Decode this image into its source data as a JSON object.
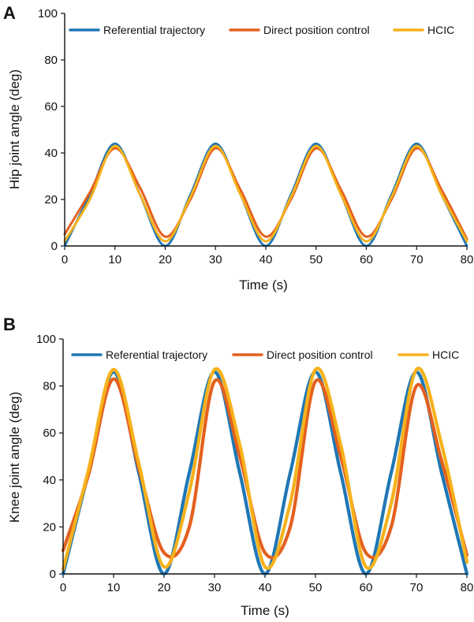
{
  "chart_data": [
    {
      "panel": "A",
      "type": "line",
      "xlabel": "Time (s)",
      "ylabel": "Hip joint angle (deg)",
      "xlim": [
        0,
        80
      ],
      "ylim": [
        0,
        100
      ],
      "xticks": [
        0,
        10,
        20,
        30,
        40,
        50,
        60,
        70,
        80
      ],
      "yticks": [
        0,
        20,
        40,
        60,
        80,
        100
      ],
      "legend_position": "top",
      "series": [
        {
          "name": "Referential trajectory",
          "color": "#1f77b4",
          "x": [
            0,
            5,
            10,
            15,
            20,
            25,
            30,
            35,
            40,
            45,
            50,
            55,
            60,
            65,
            70,
            75,
            80
          ],
          "y": [
            0,
            22,
            44,
            22,
            0,
            22,
            44,
            22,
            0,
            22,
            44,
            22,
            0,
            22,
            44,
            22,
            0
          ]
        },
        {
          "name": "Direct position control",
          "color": "#e4601e",
          "x": [
            0,
            5,
            10,
            15,
            20,
            25,
            30,
            35,
            40,
            45,
            50,
            55,
            60,
            65,
            70,
            75,
            80
          ],
          "y": [
            5,
            23,
            42,
            25,
            4,
            20,
            42,
            24,
            4,
            20,
            42,
            24,
            4,
            20,
            42,
            24,
            3
          ]
        },
        {
          "name": "HCIC",
          "color": "#f6b21b",
          "x": [
            0,
            5,
            10,
            15,
            20,
            25,
            30,
            35,
            40,
            45,
            50,
            55,
            60,
            65,
            70,
            75,
            80
          ],
          "y": [
            2,
            20,
            43,
            22,
            2,
            21,
            43,
            22,
            2,
            21,
            43,
            22,
            2,
            21,
            43,
            22,
            2
          ]
        }
      ]
    },
    {
      "panel": "B",
      "type": "line",
      "xlabel": "Time (s)",
      "ylabel": "Knee joint angle (deg)",
      "xlim": [
        0,
        80
      ],
      "ylim": [
        0,
        100
      ],
      "xticks": [
        0,
        10,
        20,
        30,
        40,
        50,
        60,
        70,
        80
      ],
      "yticks": [
        0,
        20,
        40,
        60,
        80,
        100
      ],
      "legend_position": "top",
      "series": [
        {
          "name": "Referential trajectory",
          "color": "#1f77b4",
          "x": [
            0,
            5,
            10,
            15,
            20,
            25,
            30,
            35,
            40,
            45,
            50,
            55,
            60,
            65,
            70,
            75,
            80
          ],
          "y": [
            0,
            43,
            86,
            43,
            0,
            43,
            86,
            43,
            0,
            43,
            86,
            43,
            0,
            43,
            86,
            43,
            0
          ]
        },
        {
          "name": "Direct position control",
          "color": "#e4601e",
          "x": [
            0,
            5,
            10,
            15,
            20,
            25,
            30,
            35,
            40,
            45,
            50,
            55,
            60,
            65,
            70,
            75,
            80
          ],
          "y": [
            10,
            42,
            83,
            45,
            9,
            20,
            82,
            50,
            9,
            20,
            82,
            50,
            9,
            20,
            80,
            48,
            8
          ]
        },
        {
          "name": "HCIC",
          "color": "#f6b21b",
          "x": [
            0,
            5,
            10,
            15,
            20,
            25,
            30,
            35,
            40,
            45,
            50,
            55,
            60,
            65,
            70,
            75,
            80
          ],
          "y": [
            2,
            44,
            87,
            47,
            3,
            35,
            87,
            55,
            3,
            30,
            87,
            55,
            3,
            30,
            87,
            55,
            5
          ]
        }
      ]
    }
  ]
}
